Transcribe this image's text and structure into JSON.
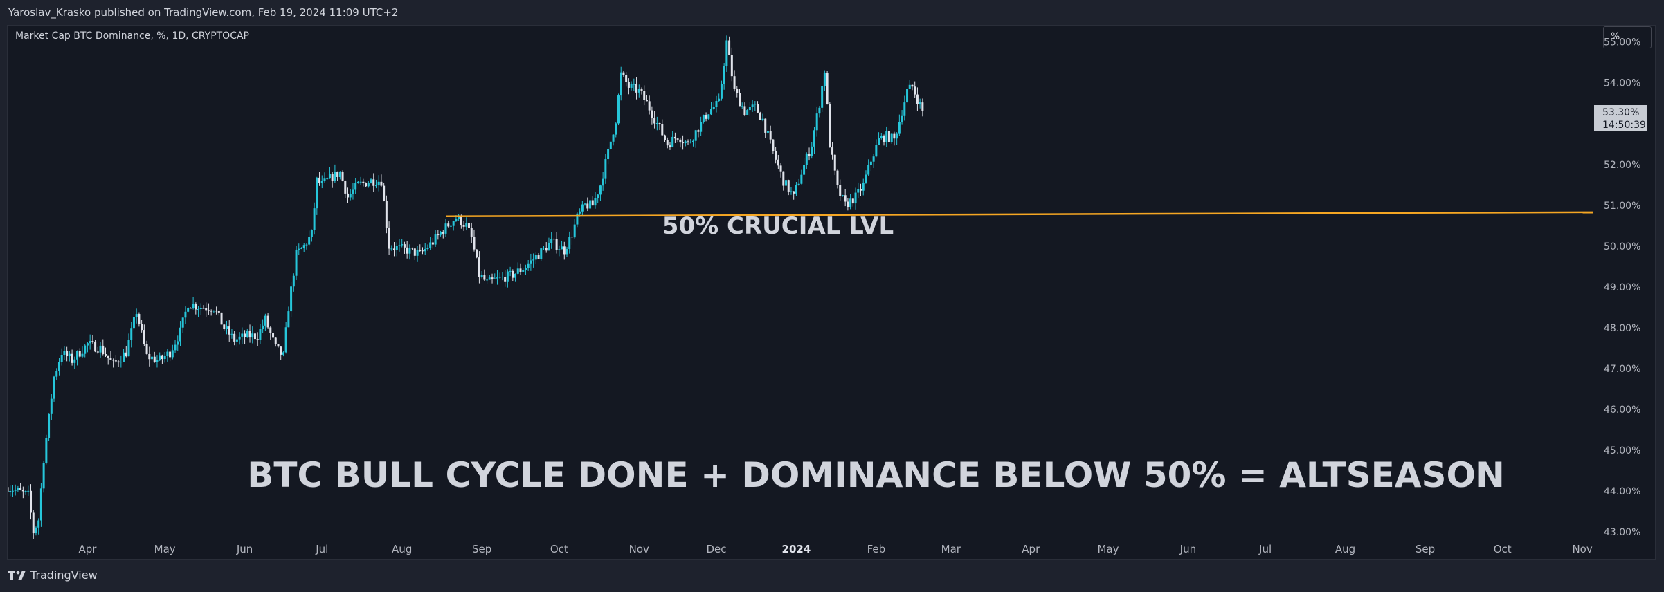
{
  "header": {
    "publisher_line": "Yaroslav_Krasko published on TradingView.com, Feb 19, 2024 11:09 UTC+2"
  },
  "symbol_description": "Market Cap BTC Dominance, %, 1D, CRYPTOCAP",
  "unit_selector": "%",
  "footer": {
    "brand": "TradingView"
  },
  "colors": {
    "background": "#141822",
    "frame": "#1e222d",
    "up_candle": "#26c6da",
    "down_candle": "#e0e3eb",
    "level_line": "#f5a623",
    "text": "#d1d4dc",
    "price_label_bg": "#c8ccd4"
  },
  "chart_data": {
    "type": "candlestick",
    "x_axis": {
      "type": "date",
      "range": [
        "2023-03-01",
        "2024-11-05"
      ],
      "ticks": [
        {
          "date": "2023-04-01",
          "label": "Apr"
        },
        {
          "date": "2023-05-01",
          "label": "May"
        },
        {
          "date": "2023-06-01",
          "label": "Jun"
        },
        {
          "date": "2023-07-01",
          "label": "Jul"
        },
        {
          "date": "2023-08-01",
          "label": "Aug"
        },
        {
          "date": "2023-09-01",
          "label": "Sep"
        },
        {
          "date": "2023-10-01",
          "label": "Oct"
        },
        {
          "date": "2023-11-01",
          "label": "Nov"
        },
        {
          "date": "2023-12-01",
          "label": "Dec"
        },
        {
          "date": "2024-01-01",
          "label": "2024"
        },
        {
          "date": "2024-02-01",
          "label": "Feb"
        },
        {
          "date": "2024-03-01",
          "label": "Mar"
        },
        {
          "date": "2024-04-01",
          "label": "Apr"
        },
        {
          "date": "2024-05-01",
          "label": "May"
        },
        {
          "date": "2024-06-01",
          "label": "Jun"
        },
        {
          "date": "2024-07-01",
          "label": "Jul"
        },
        {
          "date": "2024-08-01",
          "label": "Aug"
        },
        {
          "date": "2024-09-01",
          "label": "Sep"
        },
        {
          "date": "2024-10-01",
          "label": "Oct"
        },
        {
          "date": "2024-11-01",
          "label": "Nov"
        }
      ]
    },
    "y_axis": {
      "unit": "%",
      "range": [
        42.8,
        55.4
      ],
      "ticks": [
        "43.00%",
        "44.00%",
        "45.00%",
        "46.00%",
        "47.00%",
        "48.00%",
        "49.00%",
        "50.00%",
        "51.00%",
        "52.00%",
        "53.00%",
        "54.00%",
        "55.00%"
      ],
      "tick_values": [
        43,
        44,
        45,
        46,
        47,
        48,
        49,
        50,
        51,
        52,
        53,
        54,
        55
      ]
    },
    "close_anchors": [
      [
        "2023-03-01",
        44.1
      ],
      [
        "2023-03-05",
        44.0
      ],
      [
        "2023-03-09",
        43.9
      ],
      [
        "2023-03-11",
        43.0
      ],
      [
        "2023-03-13",
        43.3
      ],
      [
        "2023-03-15",
        44.8
      ],
      [
        "2023-03-19",
        46.8
      ],
      [
        "2023-03-22",
        47.4
      ],
      [
        "2023-03-26",
        47.2
      ],
      [
        "2023-04-01",
        47.6
      ],
      [
        "2023-04-06",
        47.5
      ],
      [
        "2023-04-11",
        47.1
      ],
      [
        "2023-04-16",
        47.4
      ],
      [
        "2023-04-20",
        48.4
      ],
      [
        "2023-04-24",
        47.3
      ],
      [
        "2023-04-29",
        47.2
      ],
      [
        "2023-05-03",
        47.4
      ],
      [
        "2023-05-07",
        47.9
      ],
      [
        "2023-05-10",
        48.6
      ],
      [
        "2023-05-15",
        48.5
      ],
      [
        "2023-05-20",
        48.5
      ],
      [
        "2023-05-24",
        48.0
      ],
      [
        "2023-05-28",
        47.7
      ],
      [
        "2023-06-02",
        47.8
      ],
      [
        "2023-06-06",
        47.8
      ],
      [
        "2023-06-09",
        48.2
      ],
      [
        "2023-06-13",
        47.5
      ],
      [
        "2023-06-16",
        47.3
      ],
      [
        "2023-06-18",
        48.5
      ],
      [
        "2023-06-21",
        49.8
      ],
      [
        "2023-06-24",
        50.0
      ],
      [
        "2023-06-27",
        50.3
      ],
      [
        "2023-06-29",
        51.6
      ],
      [
        "2023-07-01",
        51.5
      ],
      [
        "2023-07-05",
        51.7
      ],
      [
        "2023-07-08",
        51.8
      ],
      [
        "2023-07-11",
        51.2
      ],
      [
        "2023-07-15",
        51.5
      ],
      [
        "2023-07-20",
        51.6
      ],
      [
        "2023-07-24",
        51.6
      ],
      [
        "2023-07-27",
        50.0
      ],
      [
        "2023-08-03",
        49.9
      ],
      [
        "2023-08-08",
        49.8
      ],
      [
        "2023-08-13",
        50.1
      ],
      [
        "2023-08-17",
        50.4
      ],
      [
        "2023-08-22",
        50.7
      ],
      [
        "2023-08-26",
        50.5
      ],
      [
        "2023-08-28",
        50.2
      ],
      [
        "2023-08-31",
        49.3
      ],
      [
        "2023-09-03",
        49.1
      ],
      [
        "2023-09-08",
        49.2
      ],
      [
        "2023-09-13",
        49.3
      ],
      [
        "2023-09-18",
        49.5
      ],
      [
        "2023-09-23",
        49.8
      ],
      [
        "2023-09-28",
        50.1
      ],
      [
        "2023-10-03",
        49.9
      ],
      [
        "2023-10-06",
        50.3
      ],
      [
        "2023-10-08",
        50.7
      ],
      [
        "2023-10-11",
        51.0
      ],
      [
        "2023-10-14",
        51.0
      ],
      [
        "2023-10-17",
        51.5
      ],
      [
        "2023-10-20",
        52.3
      ],
      [
        "2023-10-23",
        53.1
      ],
      [
        "2023-10-25",
        54.2
      ],
      [
        "2023-10-28",
        53.9
      ],
      [
        "2023-11-01",
        53.8
      ],
      [
        "2023-11-04",
        53.5
      ],
      [
        "2023-11-08",
        53.0
      ],
      [
        "2023-11-12",
        52.5
      ],
      [
        "2023-11-16",
        52.7
      ],
      [
        "2023-11-20",
        52.5
      ],
      [
        "2023-11-24",
        52.9
      ],
      [
        "2023-11-28",
        53.3
      ],
      [
        "2023-12-02",
        53.5
      ],
      [
        "2023-12-04",
        54.5
      ],
      [
        "2023-12-05",
        55.0
      ],
      [
        "2023-12-08",
        53.8
      ],
      [
        "2023-12-12",
        53.3
      ],
      [
        "2023-12-16",
        53.4
      ],
      [
        "2023-12-19",
        53.1
      ],
      [
        "2023-12-23",
        52.3
      ],
      [
        "2023-12-27",
        51.6
      ],
      [
        "2023-12-31",
        51.2
      ],
      [
        "2024-01-03",
        51.8
      ],
      [
        "2024-01-07",
        52.5
      ],
      [
        "2024-01-10",
        53.5
      ],
      [
        "2024-01-12",
        54.3
      ],
      [
        "2024-01-14",
        52.5
      ],
      [
        "2024-01-17",
        51.4
      ],
      [
        "2024-01-20",
        51.0
      ],
      [
        "2024-01-24",
        51.2
      ],
      [
        "2024-01-27",
        51.5
      ],
      [
        "2024-01-30",
        52.1
      ],
      [
        "2024-02-02",
        52.6
      ],
      [
        "2024-02-05",
        52.7
      ],
      [
        "2024-02-08",
        52.6
      ],
      [
        "2024-02-11",
        53.3
      ],
      [
        "2024-02-13",
        53.8
      ],
      [
        "2024-02-15",
        53.9
      ],
      [
        "2024-02-17",
        53.6
      ],
      [
        "2024-02-19",
        53.3
      ]
    ],
    "last_value_label": {
      "value": "53.30%",
      "countdown": "14:50:39",
      "numeric": 53.3
    },
    "annotations": [
      {
        "type": "horizontal-ray",
        "from": {
          "date": "2023-08-18",
          "value": 50.73
        },
        "to": {
          "date": "2024-11-05",
          "value": 50.83
        }
      },
      {
        "type": "text",
        "text": "50% CRUCIAL LVL",
        "anchor": {
          "date": "2023-11-10",
          "value": 50.3
        }
      },
      {
        "type": "text",
        "text": "BTC BULL CYCLE DONE + DOMINANCE BELOW 50% = ALTSEASON",
        "anchor": {
          "date": "2023-06-02",
          "value": 44.1
        }
      }
    ]
  }
}
